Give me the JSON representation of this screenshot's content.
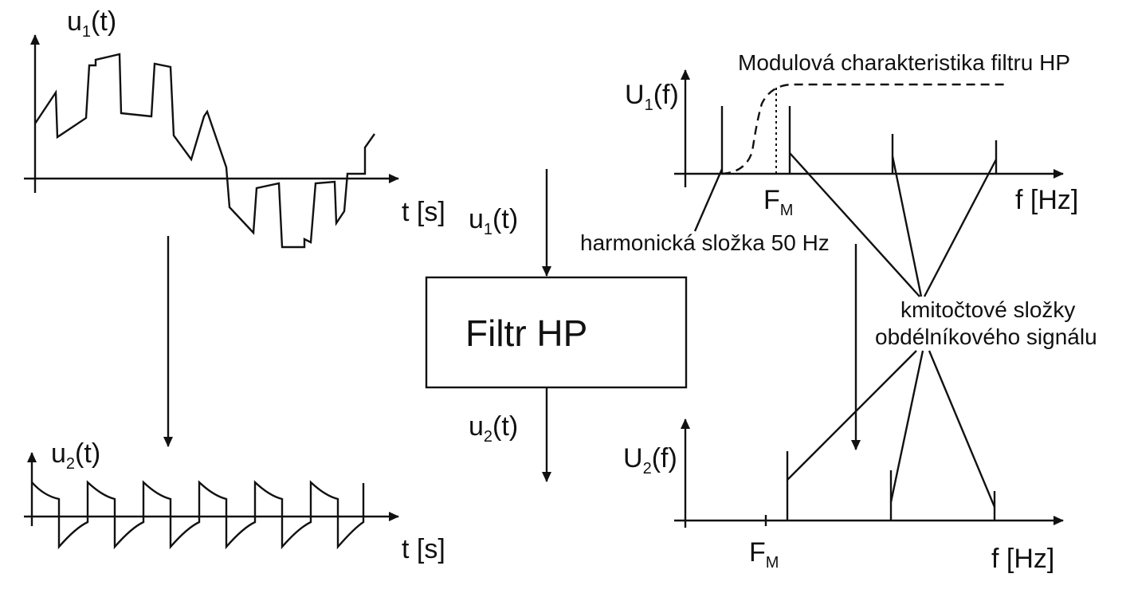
{
  "time_plot_top": {
    "y_label": "u",
    "y_label_sub": "1",
    "y_label_suffix": "(t)",
    "x_label": "t [s]"
  },
  "time_plot_bottom": {
    "y_label": "u",
    "y_label_sub": "2",
    "y_label_suffix": "(t)",
    "x_label": "t [s]"
  },
  "filter_block": {
    "title": "Filtr HP",
    "input_label": "u",
    "input_sub": "1",
    "input_suffix": "(t)",
    "output_label": "u",
    "output_sub": "2",
    "output_suffix": "(t)"
  },
  "spectrum_top": {
    "y_label": "U",
    "y_label_sub": "1",
    "y_label_suffix": "(f)",
    "x_label": "f [Hz]",
    "cutoff_label": "F",
    "cutoff_sub": "M",
    "filter_curve_label": "Modulová charakteristika filtru HP"
  },
  "spectrum_bottom": {
    "y_label": "U",
    "y_label_sub": "2",
    "y_label_suffix": "(f)",
    "x_label": "f [Hz]",
    "cutoff_label": "F",
    "cutoff_sub": "M"
  },
  "annotations": {
    "harmonic": "harmonická složka 50 Hz",
    "components_line1": "kmitočtové složky",
    "components_line2": "obdélníkového signálu"
  },
  "colors": {
    "ink": "#111111",
    "background": "#ffffff"
  }
}
